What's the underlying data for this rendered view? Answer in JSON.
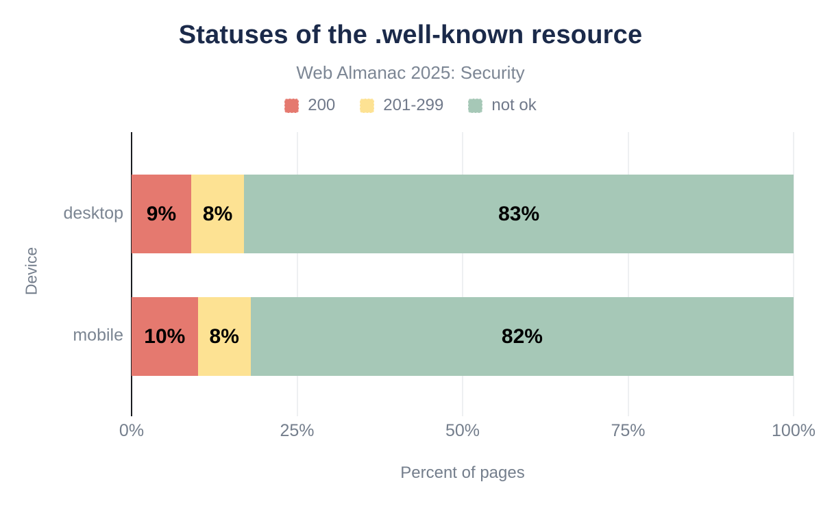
{
  "title": "Statuses of the .well-known resource",
  "subtitle": "Web Almanac 2025: Security",
  "colors": {
    "background": "#ffffff",
    "title_text": "#1b2a4a",
    "secondary_text": "#747e8c",
    "bar_label_text": "#000000",
    "axis_line": "#1a1c20",
    "gridline": "#eef0f2"
  },
  "chart_data": {
    "type": "bar",
    "orientation": "horizontal",
    "stacked": true,
    "grid": true,
    "legend_position": "top",
    "title": "Statuses of the .well-known resource",
    "subtitle": "Web Almanac 2025: Security",
    "xlabel": "Percent of pages",
    "ylabel": "Device",
    "xlim": [
      0,
      100
    ],
    "x_ticks": [
      0,
      25,
      50,
      75,
      100
    ],
    "x_tick_labels": [
      "0%",
      "25%",
      "50%",
      "75%",
      "100%"
    ],
    "categories": [
      "desktop",
      "mobile"
    ],
    "series": [
      {
        "name": "200",
        "color": "#e5796f",
        "values": [
          9,
          10
        ]
      },
      {
        "name": "201-299",
        "color": "#fde293",
        "values": [
          8,
          8
        ]
      },
      {
        "name": "not ok",
        "color": "#a6c8b7",
        "values": [
          83,
          82
        ]
      }
    ],
    "data_labels": [
      [
        "9%",
        "8%",
        "83%"
      ],
      [
        "10%",
        "8%",
        "82%"
      ]
    ]
  }
}
